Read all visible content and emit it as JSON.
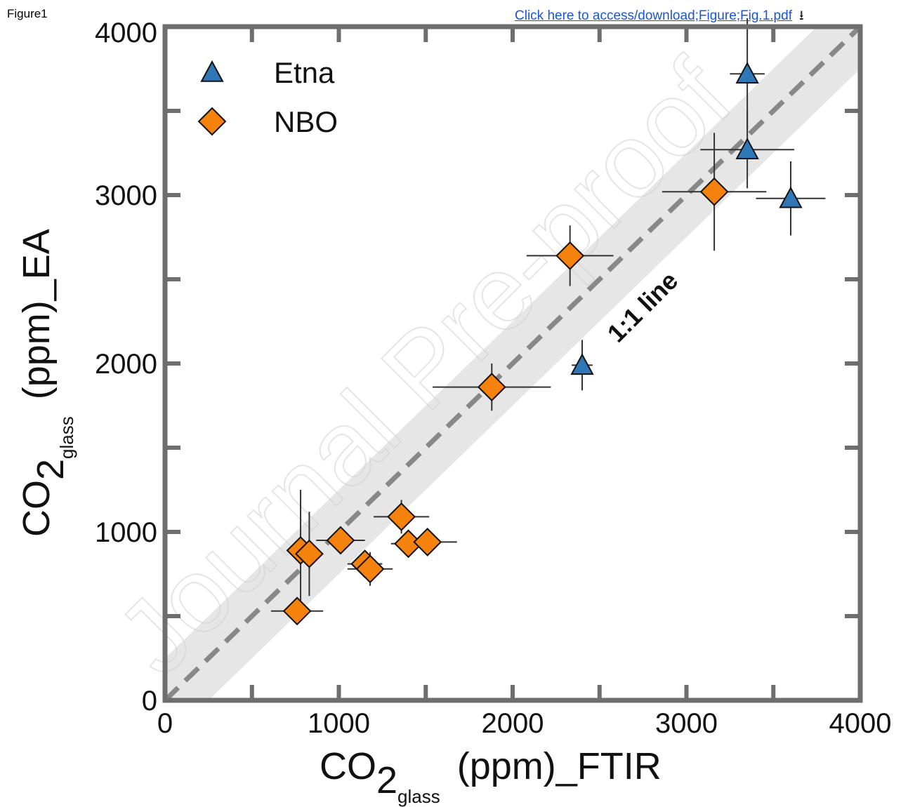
{
  "header": {
    "figure_label": "Figure1",
    "download_link": "Click here to access/download;Figure;Fig.1.pdf",
    "download_icon": "download-icon"
  },
  "watermark": "Journal Pre-proof",
  "chart_data": {
    "type": "scatter",
    "xlabel": {
      "main": "CO",
      "sub1": "2",
      "sub2": "glass",
      "rest": "(ppm)_FTIR"
    },
    "ylabel": {
      "main": "CO",
      "sub1": "2",
      "sub2": "glass",
      "rest": "(ppm)_EA"
    },
    "xlim": [
      0,
      4000
    ],
    "ylim": [
      0,
      4000
    ],
    "xticks": [
      "0",
      "1000",
      "2000",
      "3000",
      "4000"
    ],
    "yticks": [
      "0",
      "1000",
      "2000",
      "3000",
      "4000"
    ],
    "reference_line": {
      "label": "1:1 line",
      "slope": 1,
      "band_halfwidth": 250,
      "color": "#888888",
      "band_color": "#e6e6e6"
    },
    "legend": {
      "placement": "top-left"
    },
    "series": [
      {
        "name": "Etna",
        "marker": "triangle",
        "color": "#2e78b7",
        "points": [
          {
            "x": 3350,
            "y": 3720,
            "xerr": 100,
            "yerr": 330
          },
          {
            "x": 3350,
            "y": 3270,
            "xerr": 270,
            "yerr": 230
          },
          {
            "x": 3600,
            "y": 2980,
            "xerr": 200,
            "yerr": 220
          },
          {
            "x": 2400,
            "y": 1990,
            "xerr": 60,
            "yerr": 150
          }
        ]
      },
      {
        "name": "NBO",
        "marker": "diamond",
        "color": "#f5820d",
        "points": [
          {
            "x": 3160,
            "y": 3020,
            "xerr": 300,
            "yerr": 350
          },
          {
            "x": 2330,
            "y": 2640,
            "xerr": 250,
            "yerr": 180
          },
          {
            "x": 1880,
            "y": 1860,
            "xerr": 340,
            "yerr": 140
          },
          {
            "x": 1360,
            "y": 1090,
            "xerr": 160,
            "yerr": 100
          },
          {
            "x": 1010,
            "y": 950,
            "xerr": 140,
            "yerr": 70
          },
          {
            "x": 1150,
            "y": 810,
            "xerr": 100,
            "yerr": 70
          },
          {
            "x": 1180,
            "y": 780,
            "xerr": 130,
            "yerr": 100
          },
          {
            "x": 1400,
            "y": 930,
            "xerr": 100,
            "yerr": 70
          },
          {
            "x": 1510,
            "y": 940,
            "xerr": 170,
            "yerr": 80
          },
          {
            "x": 780,
            "y": 890,
            "xerr": 80,
            "yerr": 360
          },
          {
            "x": 830,
            "y": 870,
            "xerr": 80,
            "yerr": 250
          },
          {
            "x": 760,
            "y": 530,
            "xerr": 150,
            "yerr": 80
          }
        ]
      }
    ]
  }
}
